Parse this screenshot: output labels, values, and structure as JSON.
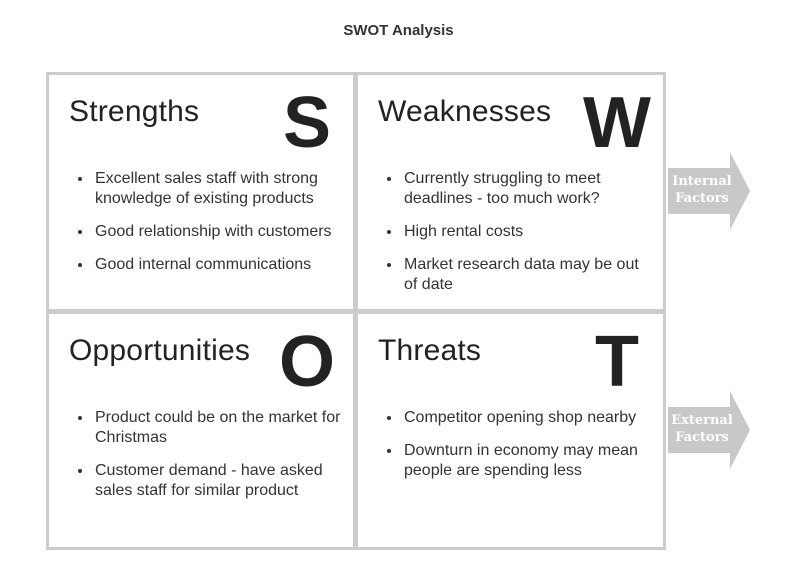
{
  "title": "SWOT Analysis",
  "quadrants": {
    "strengths": {
      "heading": "Strengths",
      "letter": "S",
      "items": [
        "Excellent sales staff with strong knowledge of existing products",
        "Good relationship with customers",
        "Good internal communications"
      ]
    },
    "weaknesses": {
      "heading": "Weaknesses",
      "letter": "W",
      "items": [
        "Currently struggling to meet deadlines - too much work?",
        "High rental costs",
        "Market research data may be out of date"
      ]
    },
    "opportunities": {
      "heading": "Opportunities",
      "letter": "O",
      "items": [
        "Product could be on the market for Christmas",
        "Customer demand - have asked sales staff for similar product"
      ]
    },
    "threats": {
      "heading": "Threats",
      "letter": "T",
      "items": [
        "Competitor opening shop nearby",
        "Downturn in economy may mean people are spending less"
      ]
    }
  },
  "arrows": {
    "internal": "Internal Factors",
    "external": "External Factors"
  },
  "colors": {
    "grid_border": "#cccccc",
    "arrow_fill": "#c8c8c8",
    "heading_text": "#222222",
    "body_text": "#333333"
  }
}
